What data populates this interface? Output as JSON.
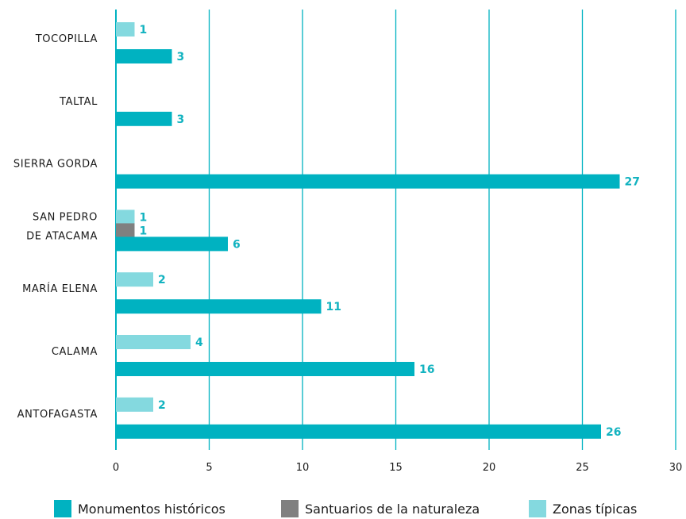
{
  "chart_data": {
    "type": "bar",
    "orientation": "horizontal",
    "categories": [
      "TOCOPILLA",
      "TALTAL",
      "SIERRA GORDA",
      "SAN PEDRO DE ATACAMA",
      "MARÍA ELENA",
      "CALAMA",
      "ANTOFAGASTA"
    ],
    "category_lines": [
      [
        "TOCOPILLA"
      ],
      [
        "TALTAL"
      ],
      [
        "SIERRA GORDA"
      ],
      [
        "SAN PEDRO",
        "DE ATACAMA"
      ],
      [
        "MARÍA ELENA"
      ],
      [
        "CALAMA"
      ],
      [
        "ANTOFAGASTA"
      ]
    ],
    "series": [
      {
        "name": "Zonas típicas",
        "color": "#84d9df",
        "values": [
          1,
          null,
          null,
          1,
          2,
          4,
          2
        ]
      },
      {
        "name": "Santuarios de la naturaleza",
        "color": "#808080",
        "values": [
          null,
          null,
          null,
          1,
          null,
          null,
          null
        ]
      },
      {
        "name": "Monumentos históricos",
        "color": "#00b2c1",
        "values": [
          3,
          3,
          27,
          6,
          11,
          16,
          26
        ]
      }
    ],
    "xlim": [
      0,
      30
    ],
    "xticks": [
      0,
      5,
      10,
      15,
      20,
      25,
      30
    ],
    "grid": true,
    "legend_position": "bottom"
  },
  "legend": [
    {
      "label": "Monumentos históricos",
      "color": "#00b2c1"
    },
    {
      "label": "Santuarios de la naturaleza",
      "color": "#808080"
    },
    {
      "label": "Zonas típicas",
      "color": "#84d9df"
    }
  ],
  "colors": {
    "grid": "#00b2c1",
    "value_label": "#13b3c0"
  }
}
